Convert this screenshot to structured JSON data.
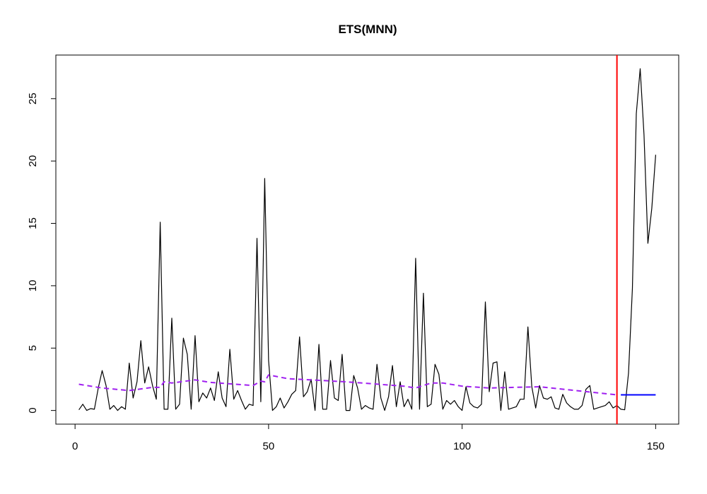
{
  "chart_data": {
    "type": "line",
    "title": "ETS(MNN)",
    "xlabel": "",
    "ylabel": "",
    "xlim": [
      1,
      150
    ],
    "ylim": [
      0,
      27.4
    ],
    "x_ticks": [
      0,
      50,
      100,
      150
    ],
    "y_ticks": [
      0,
      5,
      10,
      15,
      20,
      25
    ],
    "grid": false,
    "legend": "none",
    "holdout_start": 140,
    "series": [
      {
        "role": "actuals",
        "color": "#000000",
        "style": "solid",
        "x_start": 1,
        "values": [
          0.05,
          0.5,
          0.0,
          0.15,
          0.1,
          1.8,
          3.2,
          2.0,
          0.1,
          0.4,
          0.0,
          0.3,
          0.1,
          3.8,
          1.0,
          2.3,
          5.6,
          2.2,
          3.5,
          2.0,
          0.9,
          15.1,
          0.1,
          0.1,
          7.4,
          0.1,
          0.5,
          5.8,
          4.5,
          0.1,
          6.0,
          0.7,
          1.4,
          1.0,
          1.8,
          0.8,
          3.1,
          1.0,
          0.3,
          4.9,
          0.9,
          1.6,
          0.8,
          0.1,
          0.5,
          0.4,
          13.8,
          0.7,
          18.6,
          4.0,
          0.0,
          0.3,
          1.0,
          0.2,
          0.7,
          1.3,
          1.6,
          5.9,
          1.1,
          1.5,
          2.5,
          0.0,
          5.3,
          0.1,
          0.1,
          4.0,
          1.0,
          0.8,
          4.5,
          0.0,
          0.0,
          2.8,
          1.8,
          0.1,
          0.4,
          0.2,
          0.1,
          3.7,
          1.0,
          0.0,
          1.1,
          3.6,
          0.3,
          2.3,
          0.3,
          0.9,
          0.1,
          12.2,
          0.1,
          9.4,
          0.3,
          0.5,
          3.7,
          2.9,
          0.1,
          0.8,
          0.5,
          0.8,
          0.3,
          0.0,
          1.9,
          0.6,
          0.3,
          0.2,
          0.5,
          8.7,
          1.5,
          3.8,
          3.9,
          0.0,
          3.1,
          0.1,
          0.2,
          0.3,
          0.9,
          0.9,
          6.7,
          1.9,
          0.2,
          2.0,
          1.0,
          0.9,
          1.1,
          0.2,
          0.1,
          1.3,
          0.6,
          0.3,
          0.1,
          0.1,
          0.4,
          1.7,
          2.0,
          0.1,
          0.2,
          0.3,
          0.4,
          0.7,
          0.2,
          0.4,
          0.1,
          0.05,
          3.0,
          9.8,
          23.8,
          27.4,
          22.1,
          13.4,
          16.2,
          20.5
        ]
      },
      {
        "role": "fitted",
        "color": "#A020F0",
        "style": "dashed",
        "x": [
          1,
          7,
          14,
          20,
          22,
          23,
          25,
          31,
          35,
          46,
          48,
          49,
          50,
          55,
          70,
          85,
          88,
          92,
          95,
          100,
          107,
          120,
          140
        ],
        "values": [
          2.1,
          1.8,
          1.6,
          1.85,
          1.85,
          2.3,
          2.2,
          2.45,
          2.25,
          2.0,
          2.35,
          2.3,
          2.85,
          2.55,
          2.3,
          1.95,
          1.8,
          2.2,
          2.2,
          1.95,
          1.8,
          1.9,
          1.25
        ]
      },
      {
        "role": "forecast",
        "color": "#0000FF",
        "style": "solid",
        "x": [
          141,
          150
        ],
        "values": [
          1.25,
          1.25
        ]
      }
    ],
    "vline_color": "#FF0000"
  }
}
